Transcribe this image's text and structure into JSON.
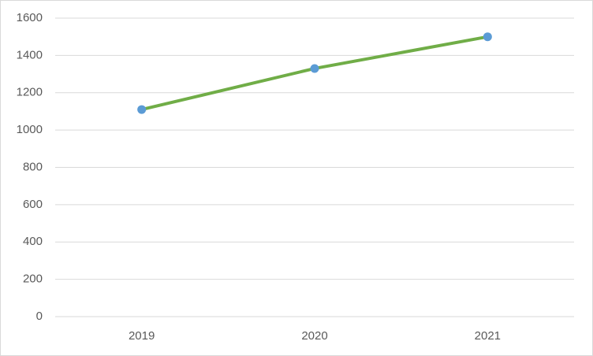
{
  "chart_data": {
    "type": "line",
    "categories": [
      "2019",
      "2020",
      "2021"
    ],
    "series": [
      {
        "color": "#70ad47",
        "marker_color": "#5b9bd5",
        "values": [
          1110,
          1330,
          1500
        ]
      }
    ],
    "ylim": [
      0,
      1600
    ],
    "yticks": [
      0,
      200,
      400,
      600,
      800,
      1000,
      1200,
      1400,
      1600
    ],
    "grid": true
  }
}
